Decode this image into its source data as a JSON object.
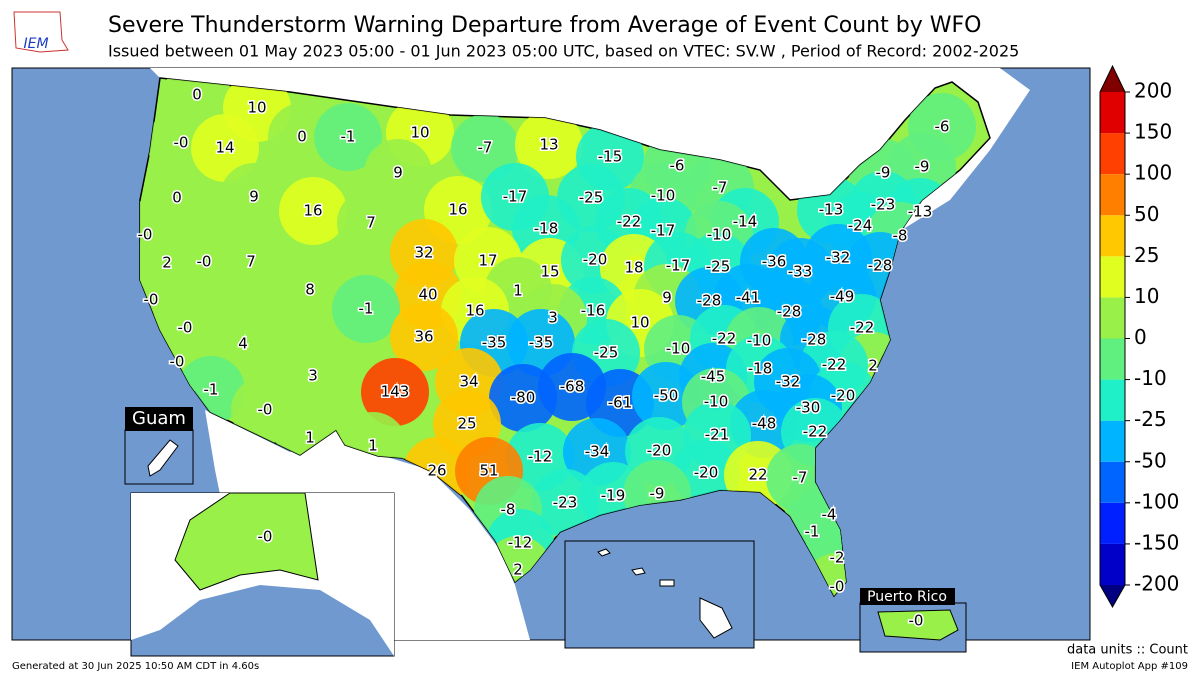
{
  "logo": "IEM",
  "title": "Severe Thunderstorm Warning Departure from Average of Event Count by WFO",
  "subtitle": "Issued between 01 May 2023 05:00 - 01 Jun 2023 05:00 UTC, based on VTEC: SV.W  , Period of Record: 2002-2025",
  "wfo_labels": [
    "0",
    "10",
    "-0",
    "14",
    "0",
    "-1",
    "10",
    "-7",
    "13",
    "-15",
    "-6",
    "-9",
    "-6",
    "-9",
    "0",
    "9",
    "9",
    "16",
    "7",
    "16",
    "-17",
    "-25",
    "-10",
    "-7",
    "-13",
    "-23",
    "-13",
    "-0",
    "-0",
    "2",
    "7",
    "32",
    "-18",
    "-22",
    "-17",
    "-14",
    "-24",
    "-8",
    "-10",
    "17",
    "15",
    "-20",
    "18",
    "-17",
    "-25",
    "-36",
    "-33",
    "-32",
    "-28",
    "-0",
    "8",
    "40",
    "1",
    "-16",
    "9",
    "-28",
    "-41",
    "-49",
    "-1",
    "16",
    "3",
    "10",
    "-28",
    "-0",
    "4",
    "36",
    "-35",
    "-35",
    "-25",
    "-10",
    "-22",
    "-10",
    "-28",
    "-22",
    "-0",
    "3",
    "143",
    "34",
    "-68",
    "2",
    "-45",
    "-18",
    "-22",
    "-1",
    "-80",
    "-61",
    "-50",
    "-32",
    "-20",
    "-0",
    "-10",
    "-30",
    "25",
    "-48",
    "1",
    "-21",
    "-22",
    "1",
    "-12",
    "-34",
    "-20",
    "26",
    "51",
    "-20",
    "22",
    "-7",
    "-23",
    "-19",
    "-9",
    "-8",
    "-4",
    "-1",
    "-12",
    "-2",
    "2",
    "-0"
  ],
  "insets": {
    "guam": {
      "title": "Guam"
    },
    "alaska": {
      "label": "-0"
    },
    "puerto_rico": {
      "title": "Puerto Rico",
      "label": "-0"
    }
  },
  "colorbar": {
    "levels": [
      -200,
      -150,
      -100,
      -50,
      -25,
      -10,
      0,
      10,
      25,
      50,
      100,
      150,
      200
    ],
    "colors": [
      "#0000c8",
      "#0020ff",
      "#0064ff",
      "#00b4ff",
      "#20f0c8",
      "#60f080",
      "#98f048",
      "#e0ff20",
      "#ffc800",
      "#ff8000",
      "#ff4000",
      "#e00000"
    ],
    "under": "#000080",
    "over": "#800000"
  },
  "units": "data units :: Count",
  "footer_left": "Generated at 30 Jun 2025 10:50 AM CDT in 4.60s",
  "footer_right": "IEM Autoplot App #109"
}
